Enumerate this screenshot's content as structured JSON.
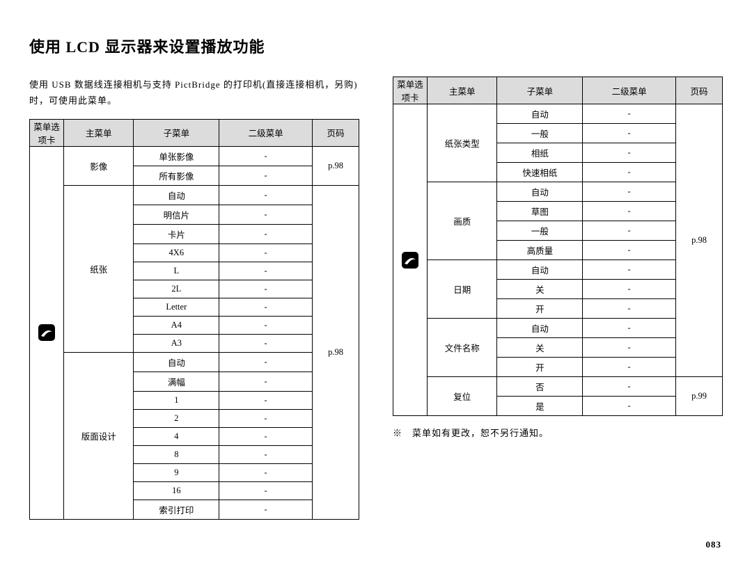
{
  "title": "使用 LCD 显示器来设置播放功能",
  "intro": "使用 USB 数据线连接相机与支持 PictBridge 的打印机(直接连接相机，另购)时，可使用此菜单。",
  "headers": {
    "tab": "菜单选项卡",
    "main": "主菜单",
    "sub": "子菜单",
    "sec": "二级菜单",
    "page": "页码"
  },
  "left": {
    "groups": [
      {
        "main": "影像",
        "page": "p.98",
        "subs": [
          "单张影像",
          "所有影像"
        ]
      },
      {
        "main": "纸张",
        "page": "p.98",
        "subs": [
          "自动",
          "明信片",
          "卡片",
          "4X6",
          "L",
          "2L",
          "Letter",
          "A4",
          "A3"
        ]
      },
      {
        "main": "版面设计",
        "page": "",
        "subs": [
          "自动",
          "满幅",
          "1",
          "2",
          "4",
          "8",
          "9",
          "16",
          "索引打印"
        ]
      }
    ]
  },
  "right": {
    "groups": [
      {
        "main": "纸张类型",
        "page": "p.98",
        "subs": [
          "自动",
          "一般",
          "相纸",
          "快速相纸"
        ]
      },
      {
        "main": "画质",
        "page": "",
        "subs": [
          "自动",
          "草图",
          "一般",
          "高质量"
        ]
      },
      {
        "main": "日期",
        "page": "",
        "subs": [
          "自动",
          "关",
          "开"
        ]
      },
      {
        "main": "文件名称",
        "page": "",
        "subs": [
          "自动",
          "关",
          "开"
        ]
      },
      {
        "main": "复位",
        "page": "p.99",
        "subs": [
          "否",
          "是"
        ]
      }
    ]
  },
  "footnote": "※　菜单如有更改，恕不另行通知。",
  "page_number": "083",
  "colors": {
    "header_bg": "#dcdcdc",
    "border": "#000000",
    "text": "#000000",
    "bg": "#ffffff"
  },
  "dash": "-"
}
